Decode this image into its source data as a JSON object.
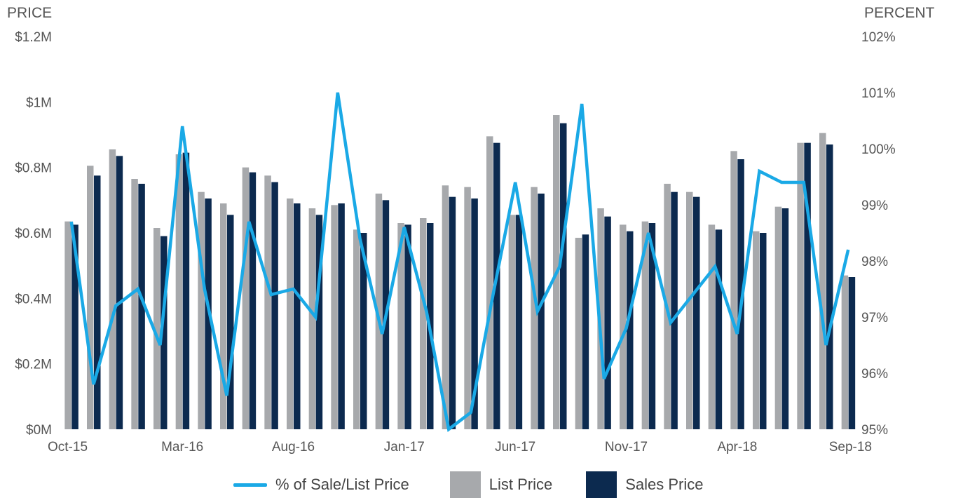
{
  "chart_data": {
    "type": "bar",
    "left_axis_title": "PRICE",
    "right_axis_title": "PERCENT",
    "left_ticks": [
      "$0M",
      "$0.2M",
      "$0.4M",
      "$0.6M",
      "$0.8M",
      "$1M",
      "$1.2M"
    ],
    "right_ticks": [
      "95%",
      "96%",
      "97%",
      "98%",
      "99%",
      "100%",
      "101%",
      "102%"
    ],
    "ylim_left": [
      0,
      1.2
    ],
    "ylim_right": [
      95,
      102
    ],
    "x_tick_labels": [
      "Oct-15",
      "Mar-16",
      "Aug-16",
      "Jan-17",
      "Jun-17",
      "Nov-17",
      "Apr-18",
      "Sep-18"
    ],
    "categories": [
      "Oct-15",
      "Nov-15",
      "Dec-15",
      "Jan-16",
      "Feb-16",
      "Mar-16",
      "Apr-16",
      "May-16",
      "Jun-16",
      "Jul-16",
      "Aug-16",
      "Sep-16",
      "Oct-16",
      "Nov-16",
      "Dec-16",
      "Jan-17",
      "Feb-17",
      "Mar-17",
      "Apr-17",
      "May-17",
      "Jun-17",
      "Jul-17",
      "Aug-17",
      "Sep-17",
      "Oct-17",
      "Nov-17",
      "Dec-17",
      "Jan-18",
      "Feb-18",
      "Mar-18",
      "Apr-18",
      "May-18",
      "Jun-18",
      "Jul-18",
      "Aug-18",
      "Sep-18"
    ],
    "series": [
      {
        "name": "List Price",
        "axis": "left",
        "color": "#a7a9ac",
        "values": [
          0.635,
          0.805,
          0.855,
          0.765,
          0.615,
          0.84,
          0.725,
          0.69,
          0.8,
          0.775,
          0.705,
          0.675,
          0.685,
          0.61,
          0.72,
          0.63,
          0.645,
          0.745,
          0.74,
          0.895,
          0.655,
          0.74,
          0.96,
          0.585,
          0.675,
          0.625,
          0.635,
          0.75,
          0.725,
          0.625,
          0.85,
          0.605,
          0.68,
          0.875,
          0.905,
          0.47
        ]
      },
      {
        "name": "Sales Price",
        "axis": "left",
        "color": "#0c2a4f",
        "values": [
          0.625,
          0.775,
          0.835,
          0.75,
          0.59,
          0.845,
          0.705,
          0.655,
          0.785,
          0.755,
          0.69,
          0.655,
          0.69,
          0.6,
          0.7,
          0.625,
          0.63,
          0.71,
          0.705,
          0.875,
          0.655,
          0.72,
          0.935,
          0.595,
          0.65,
          0.605,
          0.63,
          0.725,
          0.71,
          0.61,
          0.825,
          0.6,
          0.675,
          0.875,
          0.87,
          0.465
        ]
      },
      {
        "name": "% of Sale/List Price",
        "axis": "right",
        "color": "#1aa9e6",
        "values": [
          98.7,
          95.8,
          97.2,
          97.5,
          96.5,
          100.4,
          97.5,
          95.6,
          98.7,
          97.4,
          97.5,
          97.0,
          101.0,
          98.4,
          96.7,
          98.6,
          97.1,
          95.0,
          95.3,
          97.4,
          99.4,
          97.1,
          97.9,
          100.8,
          95.9,
          96.8,
          98.5,
          96.9,
          97.4,
          97.9,
          96.7,
          99.6,
          99.4,
          99.4,
          96.5,
          98.2
        ]
      }
    ],
    "grid": false,
    "legend_position": "bottom"
  },
  "legend": [
    {
      "label": "% of Sale/List Price",
      "kind": "line",
      "color": "#1aa9e6"
    },
    {
      "label": "List Price",
      "kind": "box",
      "color": "#a7a9ac"
    },
    {
      "label": "Sales Price",
      "kind": "box",
      "color": "#0c2a4f"
    }
  ]
}
